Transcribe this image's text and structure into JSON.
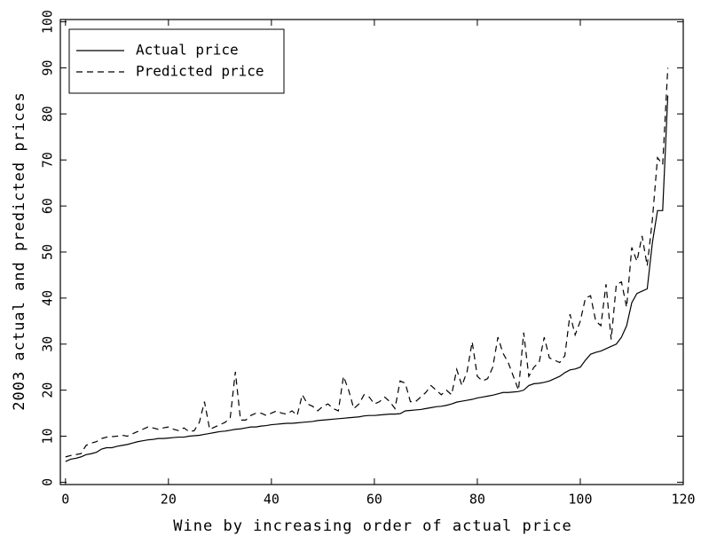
{
  "chart_data": {
    "type": "line",
    "x_label": "Wine by increasing order of actual price",
    "y_label": "2003 actual and predicted prices",
    "x": [
      0,
      1,
      2,
      3,
      4,
      5,
      6,
      7,
      8,
      9,
      10,
      11,
      12,
      13,
      14,
      15,
      16,
      17,
      18,
      19,
      20,
      21,
      22,
      23,
      24,
      25,
      26,
      27,
      28,
      29,
      30,
      31,
      32,
      33,
      34,
      35,
      36,
      37,
      38,
      39,
      40,
      41,
      42,
      43,
      44,
      45,
      46,
      47,
      48,
      49,
      50,
      51,
      52,
      53,
      54,
      55,
      56,
      57,
      58,
      59,
      60,
      61,
      62,
      63,
      64,
      65,
      66,
      67,
      68,
      69,
      70,
      71,
      72,
      73,
      74,
      75,
      76,
      77,
      78,
      79,
      80,
      81,
      82,
      83,
      84,
      85,
      86,
      87,
      88,
      89,
      90,
      91,
      92,
      93,
      94,
      95,
      96,
      97,
      98,
      99,
      100,
      101,
      102,
      103,
      104,
      105,
      106,
      107,
      108,
      109,
      110,
      111,
      112,
      113,
      114,
      115,
      116,
      117
    ],
    "series": [
      {
        "name": "Actual price",
        "color": "#000000",
        "dashed": false,
        "values": [
          4.5,
          5,
          5.2,
          5.5,
          6,
          6.2,
          6.5,
          7.2,
          7.5,
          7.5,
          7.8,
          8,
          8.2,
          8.5,
          8.8,
          9,
          9.2,
          9.3,
          9.5,
          9.5,
          9.6,
          9.7,
          9.8,
          9.8,
          10,
          10.1,
          10.2,
          10.4,
          10.6,
          10.8,
          11,
          11.1,
          11.3,
          11.5,
          11.6,
          11.8,
          12,
          12,
          12.2,
          12.3,
          12.5,
          12.6,
          12.7,
          12.8,
          12.8,
          12.9,
          13,
          13.1,
          13.2,
          13.4,
          13.5,
          13.6,
          13.7,
          13.8,
          13.9,
          14,
          14.1,
          14.2,
          14.4,
          14.5,
          14.5,
          14.6,
          14.7,
          14.8,
          14.8,
          14.9,
          15.5,
          15.6,
          15.7,
          15.8,
          16,
          16.2,
          16.4,
          16.5,
          16.7,
          17,
          17.4,
          17.6,
          17.8,
          18,
          18.3,
          18.5,
          18.7,
          18.9,
          19.2,
          19.5,
          19.5,
          19.6,
          19.7,
          20,
          21,
          21.4,
          21.5,
          21.7,
          22,
          22.5,
          23,
          23.8,
          24.4,
          24.6,
          25,
          26.5,
          27.8,
          28.2,
          28.5,
          29,
          29.5,
          30,
          31.5,
          34,
          39,
          41,
          41.5,
          42,
          52,
          59,
          59,
          84
        ]
      },
      {
        "name": "Predicted price",
        "color": "#000000",
        "dashed": true,
        "values": [
          5.5,
          5.8,
          6,
          6.2,
          8,
          8.5,
          8.8,
          9.5,
          9.8,
          9.9,
          10,
          10.2,
          10,
          10.5,
          11,
          11.5,
          12,
          11.8,
          11.5,
          11.8,
          12,
          11.5,
          11.2,
          11.8,
          11,
          11.2,
          13,
          17.5,
          11.5,
          12,
          12.5,
          13,
          14,
          24,
          13.5,
          13.5,
          14.5,
          15,
          15,
          14.5,
          15,
          15.5,
          15,
          14.8,
          15.5,
          14.5,
          19,
          17,
          16.5,
          15.5,
          16.5,
          17,
          16,
          15.5,
          23,
          20,
          16,
          17,
          19,
          18.5,
          17,
          17.5,
          18.5,
          17.5,
          16,
          22,
          21.5,
          17.5,
          17.5,
          18.5,
          19.5,
          21,
          20,
          19,
          20,
          19,
          24.5,
          21,
          24,
          30.5,
          23,
          22,
          22.5,
          25,
          31.5,
          28,
          26,
          23,
          20,
          32.5,
          23,
          25,
          26,
          31.5,
          27,
          26.5,
          26,
          27.5,
          36.5,
          32,
          35,
          40,
          40.5,
          35,
          34,
          43,
          31,
          43,
          43.5,
          38,
          51,
          48,
          53.5,
          47,
          57,
          70.5,
          69,
          90
        ]
      }
    ],
    "xlim": [
      -1,
      120
    ],
    "xticks": [
      0,
      20,
      40,
      60,
      80,
      100,
      120
    ],
    "ylim": [
      -0.5,
      100.5
    ],
    "yticks": [
      0,
      10,
      20,
      30,
      40,
      50,
      60,
      70,
      80,
      90,
      100
    ],
    "legend": "upper left"
  }
}
